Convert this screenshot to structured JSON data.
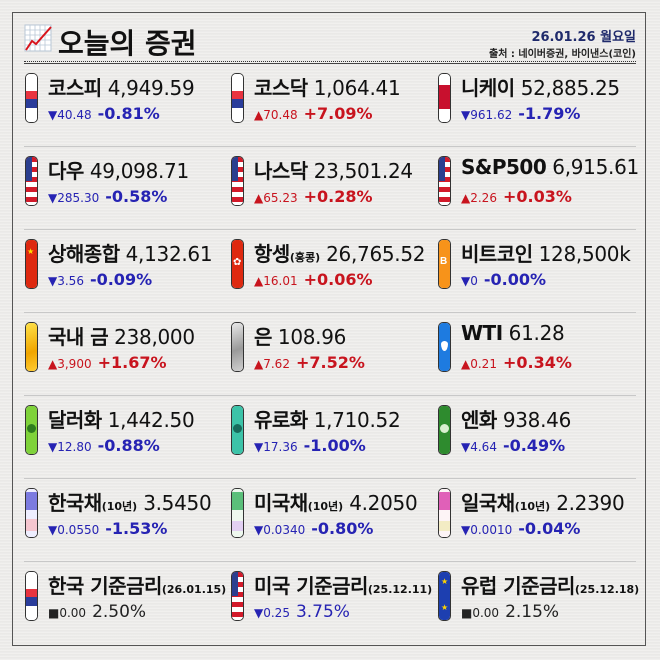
{
  "header": {
    "title": "오늘의 증권",
    "date": "26.01.26 월요일",
    "source": "출처 : 네이버증권, 바이낸스(코인)",
    "logo_icon": "line-chart-icon"
  },
  "colors": {
    "down": "#2623b3",
    "up": "#c8141e",
    "flat": "#222222",
    "title_date": "#1f2a6b"
  },
  "rows": [
    [
      {
        "name": "코스피",
        "suffix": "",
        "value": "4,949.59",
        "dir": "down",
        "arrow": "▼",
        "change": "40.48",
        "pct": "-0.81%",
        "icon": "korea-flag-icon"
      },
      {
        "name": "코스닥",
        "suffix": "",
        "value": "1,064.41",
        "dir": "up",
        "arrow": "▲",
        "change": "70.48",
        "pct": "+7.09%",
        "icon": "korea-flag-icon"
      },
      {
        "name": "니케이",
        "suffix": "",
        "value": "52,885.25",
        "dir": "down",
        "arrow": "▼",
        "change": "961.62",
        "pct": "-1.79%",
        "icon": "japan-flag-icon"
      }
    ],
    [
      {
        "name": "다우",
        "suffix": "",
        "value": "49,098.71",
        "dir": "down",
        "arrow": "▼",
        "change": "285.30",
        "pct": "-0.58%",
        "icon": "usa-flag-icon"
      },
      {
        "name": "나스닥",
        "suffix": "",
        "value": "23,501.24",
        "dir": "up",
        "arrow": "▲",
        "change": "65.23",
        "pct": "+0.28%",
        "icon": "usa-flag-icon"
      },
      {
        "name": "S&P500",
        "suffix": "",
        "value": "6,915.61",
        "dir": "up",
        "arrow": "▲",
        "change": "2.26",
        "pct": "+0.03%",
        "icon": "usa-flag-icon"
      }
    ],
    [
      {
        "name": "상해종합",
        "suffix": "",
        "value": "4,132.61",
        "dir": "down",
        "arrow": "▼",
        "change": "3.56",
        "pct": "-0.09%",
        "icon": "china-flag-icon"
      },
      {
        "name": "항셍",
        "suffix": "(홍콩)",
        "value": "26,765.52",
        "dir": "up",
        "arrow": "▲",
        "change": "16.01",
        "pct": "+0.06%",
        "icon": "hongkong-flag-icon"
      },
      {
        "name": "비트코인",
        "suffix": "",
        "value": "128,500k",
        "dir": "down",
        "arrow": "▼",
        "change": "0",
        "pct": "-0.00%",
        "icon": "bitcoin-icon"
      }
    ],
    [
      {
        "name": "국내 금",
        "suffix": "",
        "value": "238,000",
        "dir": "up",
        "arrow": "▲",
        "change": "3,900",
        "pct": "+1.67%",
        "icon": "gold-bar-icon"
      },
      {
        "name": "은",
        "suffix": "",
        "value": "108.96",
        "dir": "up",
        "arrow": "▲",
        "change": "7.62",
        "pct": "+7.52%",
        "icon": "silver-bar-icon"
      },
      {
        "name": "WTI",
        "suffix": "",
        "value": "61.28",
        "dir": "up",
        "arrow": "▲",
        "change": "0.21",
        "pct": "+0.34%",
        "icon": "oil-drop-icon"
      }
    ],
    [
      {
        "name": "달러화",
        "suffix": "",
        "value": "1,442.50",
        "dir": "down",
        "arrow": "▼",
        "change": "12.80",
        "pct": "-0.88%",
        "icon": "dollar-bill-icon"
      },
      {
        "name": "유로화",
        "suffix": "",
        "value": "1,710.52",
        "dir": "down",
        "arrow": "▼",
        "change": "17.36",
        "pct": "-1.00%",
        "icon": "euro-bill-icon"
      },
      {
        "name": "엔화",
        "suffix": "",
        "value": "938.46",
        "dir": "down",
        "arrow": "▼",
        "change": "4.64",
        "pct": "-0.49%",
        "icon": "yen-bill-icon"
      }
    ],
    [
      {
        "name": "한국채",
        "suffix": "(10년)",
        "value": "3.5450",
        "dir": "down",
        "arrow": "▼",
        "change": "0.0550",
        "pct": "-1.53%",
        "icon": "korea-bond-icon"
      },
      {
        "name": "미국채",
        "suffix": "(10년)",
        "value": "4.2050",
        "dir": "down",
        "arrow": "▼",
        "change": "0.0340",
        "pct": "-0.80%",
        "icon": "us-bond-icon"
      },
      {
        "name": "일국채",
        "suffix": "(10년)",
        "value": "2.2390",
        "dir": "down",
        "arrow": "▼",
        "change": "0.0010",
        "pct": "-0.04%",
        "icon": "japan-bond-icon"
      }
    ],
    [
      {
        "name": "한국 기준금리",
        "suffix": "(26.01.15)",
        "value": "",
        "dir": "flat",
        "arrow": "■",
        "change": "0.00",
        "pct": "2.50%",
        "icon": "korea-flag-icon"
      },
      {
        "name": "미국 기준금리",
        "suffix": "(25.12.11)",
        "value": "",
        "dir": "down",
        "arrow": "▼",
        "change": "0.25",
        "pct": "3.75%",
        "icon": "usa-flag-icon"
      },
      {
        "name": "유럽 기준금리",
        "suffix": "(25.12.18)",
        "value": "",
        "dir": "flat",
        "arrow": "■",
        "change": "0.00",
        "pct": "2.15%",
        "icon": "eu-flag-icon"
      }
    ]
  ]
}
